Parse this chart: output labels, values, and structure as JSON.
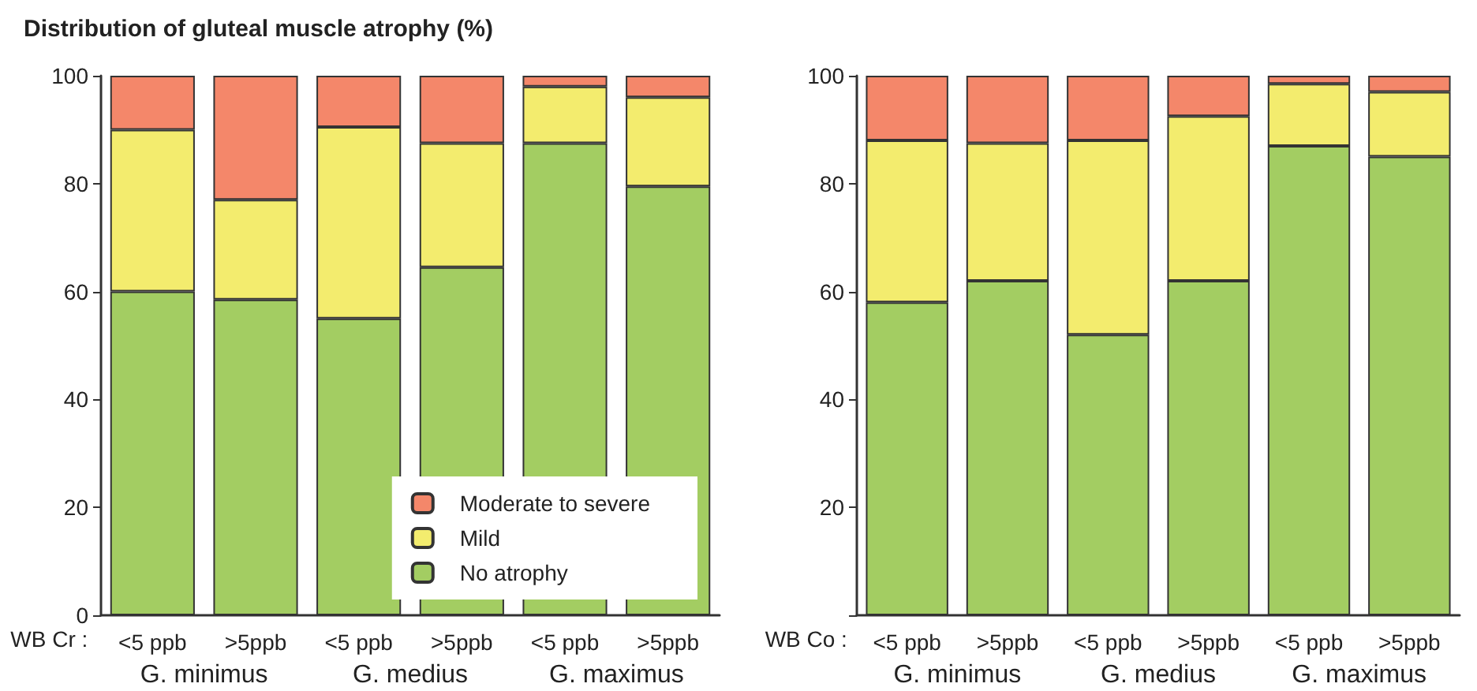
{
  "chart_data": [
    {
      "type": "bar",
      "title": "Distribution of gluteal muscle atrophy (%)",
      "categories": [
        "<5 ppb",
        ">5ppb",
        "<5 ppb",
        ">5ppb",
        "<5 ppb",
        ">5ppb"
      ],
      "stacked": true,
      "ylim": [
        0,
        100
      ],
      "yticks": [
        0,
        20,
        40,
        60,
        80,
        100
      ],
      "legend": "bottom right",
      "annotations": [
        "WB Cr :",
        "G. minimus",
        "G. medius",
        "G. maximus"
      ],
      "series": [
        {
          "name": "No atrophy",
          "color": "#a3cd62",
          "values": [
            60,
            58.5,
            55,
            64.5,
            87.5,
            79.5
          ]
        },
        {
          "name": "Mild",
          "color": "#f3ec6e",
          "values": [
            30,
            18.5,
            35.5,
            23,
            10.5,
            16.5
          ]
        },
        {
          "name": "Moderate to severe",
          "color": "#f4876a",
          "values": [
            10,
            23,
            9.5,
            12.5,
            2,
            4
          ]
        }
      ]
    },
    {
      "type": "bar",
      "categories": [
        "<5 ppb",
        ">5ppb",
        "<5 ppb",
        ">5ppb",
        "<5 ppb",
        ">5ppb"
      ],
      "stacked": true,
      "ylim": [
        0,
        100
      ],
      "yticks": [
        {
          "value": 0,
          "label": null
        },
        20,
        40,
        60,
        80,
        100
      ],
      "annotations": [
        "WB Co :",
        "G. minimus",
        "G. medius",
        "G. maximus"
      ],
      "series": [
        {
          "color": "#a3cd62",
          "values": [
            58,
            62,
            52,
            62,
            87,
            85
          ]
        },
        {
          "color": "#f3ec6e",
          "values": [
            30,
            25.5,
            36,
            30.5,
            11.5,
            12
          ]
        },
        {
          "color": "#f4876a",
          "values": [
            12,
            12.5,
            12,
            7.5,
            1.5,
            3
          ]
        }
      ]
    }
  ]
}
